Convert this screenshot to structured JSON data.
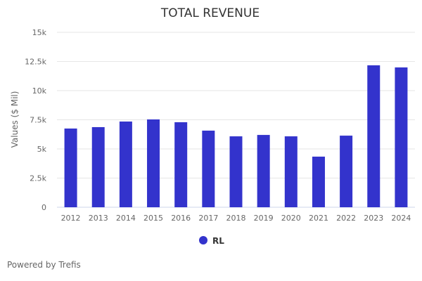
{
  "chart_data": {
    "type": "bar",
    "title": "TOTAL REVENUE",
    "xlabel": "",
    "ylabel": "Values ($ Mil)",
    "ylim": [
      0,
      15000
    ],
    "yticks": [
      0,
      2500,
      5000,
      7500,
      10000,
      12500,
      15000
    ],
    "ytick_labels": [
      "0",
      "2.5k",
      "5k",
      "7.5k",
      "10k",
      "12.5k",
      "15k"
    ],
    "categories": [
      "2012",
      "2013",
      "2014",
      "2015",
      "2016",
      "2017",
      "2018",
      "2019",
      "2020",
      "2021",
      "2022",
      "2023",
      "2024"
    ],
    "series": [
      {
        "name": "RL",
        "color": "#3333cc",
        "values": [
          6750,
          6870,
          7350,
          7530,
          7290,
          6570,
          6080,
          6200,
          6080,
          4340,
          6140,
          12170,
          11990
        ]
      }
    ],
    "grid": true,
    "legend_position": "bottom-center"
  },
  "footer": {
    "credit": "Powered by Trefis"
  }
}
